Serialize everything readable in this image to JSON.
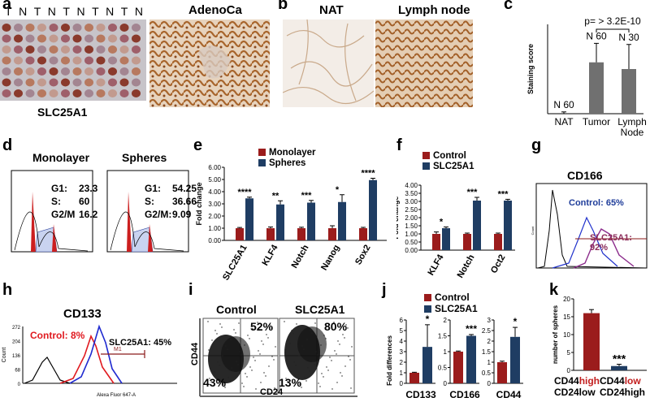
{
  "panels": {
    "a": {
      "letter": "a",
      "tma_header": [
        "T",
        "N",
        "T",
        "N",
        "T",
        "N",
        "T",
        "N",
        "T",
        "N"
      ],
      "tma_label": "SLC25A1",
      "image_title": "AdenoCa"
    },
    "b": {
      "letter": "b",
      "title_left": "NAT",
      "title_right": "Lymph node"
    },
    "c": {
      "letter": "c",
      "pvalue": "p= > 3.2E-10"
    },
    "d": {
      "letter": "d",
      "title_left": "Monolayer",
      "title_right": "Spheres",
      "left_stats": [
        [
          "G1:",
          "23.3"
        ],
        [
          "S:",
          "60"
        ],
        [
          "G2/M",
          "16.2"
        ]
      ],
      "right_stats": [
        [
          "G1:",
          "54.25"
        ],
        [
          "S:",
          "36.66"
        ],
        [
          "G2/M:",
          "9.09"
        ]
      ]
    },
    "e": {
      "letter": "e"
    },
    "f": {
      "letter": "f"
    },
    "g": {
      "letter": "g",
      "title": "CD166",
      "control_label": "Control: 65%",
      "slc_label": "SLC25A1: 92%"
    },
    "h": {
      "letter": "h",
      "title": "CD133",
      "control_label": "Control: 8%",
      "slc_label": "SLC25A1: 45%",
      "gate": "M1",
      "x_axis": "Alexa Fluor 647-A",
      "y_axis": "Count",
      "y_ticks": [
        "0",
        "68",
        "136",
        "204",
        "272"
      ]
    },
    "i": {
      "letter": "i",
      "title_left": "Control",
      "title_right": "SLC25A1",
      "y_axis": "CD44",
      "x_axis": "CD24",
      "left_q": [
        "52%",
        "43%"
      ],
      "right_q": [
        "80%",
        "13%"
      ]
    },
    "j": {
      "letter": "j"
    },
    "k": {
      "letter": "k",
      "cat1": [
        "CD44",
        "high",
        "CD24low"
      ],
      "cat2": [
        "CD44",
        "low",
        "CD24high"
      ]
    }
  },
  "colors": {
    "red": "#9b1c1c",
    "navy": "#1f3d63",
    "gray": "#707070",
    "control_text": "#e0191f",
    "slc_text": "#8b2b5a"
  },
  "chart_data": [
    {
      "panel": "c",
      "type": "bar",
      "categories": [
        "NAT",
        "Tumor",
        "Lymph Node"
      ],
      "values": [
        0,
        2.3,
        2.0
      ],
      "errors": [
        0.08,
        0.85,
        1.1
      ],
      "n_labels": [
        "N 60",
        "N 60",
        "N 30"
      ],
      "ylabel": "Staining score",
      "ylim": [
        0,
        4
      ]
    },
    {
      "panel": "e",
      "type": "bar",
      "categories": [
        "SLC25A1",
        "KLF4",
        "Notch",
        "Nanog",
        "Sox2"
      ],
      "series": [
        {
          "name": "Monolayer",
          "values": [
            1.0,
            1.0,
            1.0,
            1.0,
            1.0
          ],
          "errors": [
            0.06,
            0.1,
            0.08,
            0.2,
            0.07
          ]
        },
        {
          "name": "Spheres",
          "values": [
            3.45,
            2.95,
            3.1,
            3.15,
            4.95
          ],
          "errors": [
            0.1,
            0.3,
            0.18,
            0.6,
            0.15
          ]
        }
      ],
      "significance": [
        "****",
        "**",
        "***",
        "*",
        "****"
      ],
      "ylabel": "Fold change",
      "ylim": [
        0,
        6
      ],
      "yticks": [
        "0.00",
        "1.00",
        "2.00",
        "3.00",
        "4.00",
        "5.00",
        "6.00"
      ]
    },
    {
      "panel": "f",
      "type": "bar",
      "categories": [
        "KLF4",
        "Notch",
        "Oct2"
      ],
      "series": [
        {
          "name": "Control",
          "values": [
            1.0,
            1.0,
            1.0
          ],
          "errors": [
            0.12,
            0.05,
            0.05
          ]
        },
        {
          "name": "SLC25A1",
          "values": [
            1.35,
            3.05,
            3.05
          ],
          "errors": [
            0.08,
            0.2,
            0.08
          ]
        }
      ],
      "significance": [
        "*",
        "***",
        "***"
      ],
      "ylabel": "Fold change",
      "ylim": [
        0,
        4
      ],
      "yticks": [
        "0.00",
        "0.50",
        "1.00",
        "1.50",
        "2.00",
        "2.50",
        "3.00",
        "3.50",
        "4.00"
      ]
    },
    {
      "panel": "j",
      "type": "bar",
      "series_names": [
        "Control",
        "SLC25A1"
      ],
      "groups": [
        {
          "category": "CD133",
          "values": [
            1.0,
            3.45
          ],
          "errors": [
            0.05,
            2.1
          ],
          "sig": "*",
          "ylim": [
            0,
            6
          ],
          "yticks": [
            "0",
            "1",
            "2",
            "3",
            "4",
            "5",
            "6"
          ]
        },
        {
          "category": "CD166",
          "values": [
            1.0,
            1.5
          ],
          "errors": [
            0.02,
            0.04
          ],
          "sig": "***",
          "ylim": [
            0,
            2
          ],
          "yticks": [
            "0",
            "0.5",
            "1",
            "1.5",
            "2"
          ]
        },
        {
          "category": "CD44",
          "values": [
            1.0,
            2.2
          ],
          "errors": [
            0.05,
            0.45
          ],
          "sig": "*",
          "ylim": [
            0,
            3
          ],
          "yticks": [
            "0",
            "0.5",
            "1",
            "1.5",
            "2",
            "2.5",
            "3"
          ]
        }
      ],
      "ylabel": "Fold differences"
    },
    {
      "panel": "k",
      "type": "bar",
      "categories": [
        "CD44high CD24low",
        "CD44low CD24high"
      ],
      "values": [
        16,
        1.2
      ],
      "errors": [
        1.0,
        0.5
      ],
      "significance": [
        "",
        "***"
      ],
      "ylabel": "number of spheres",
      "ylim": [
        0,
        20
      ],
      "yticks": [
        "0",
        "5",
        "10",
        "15",
        "20"
      ]
    }
  ]
}
